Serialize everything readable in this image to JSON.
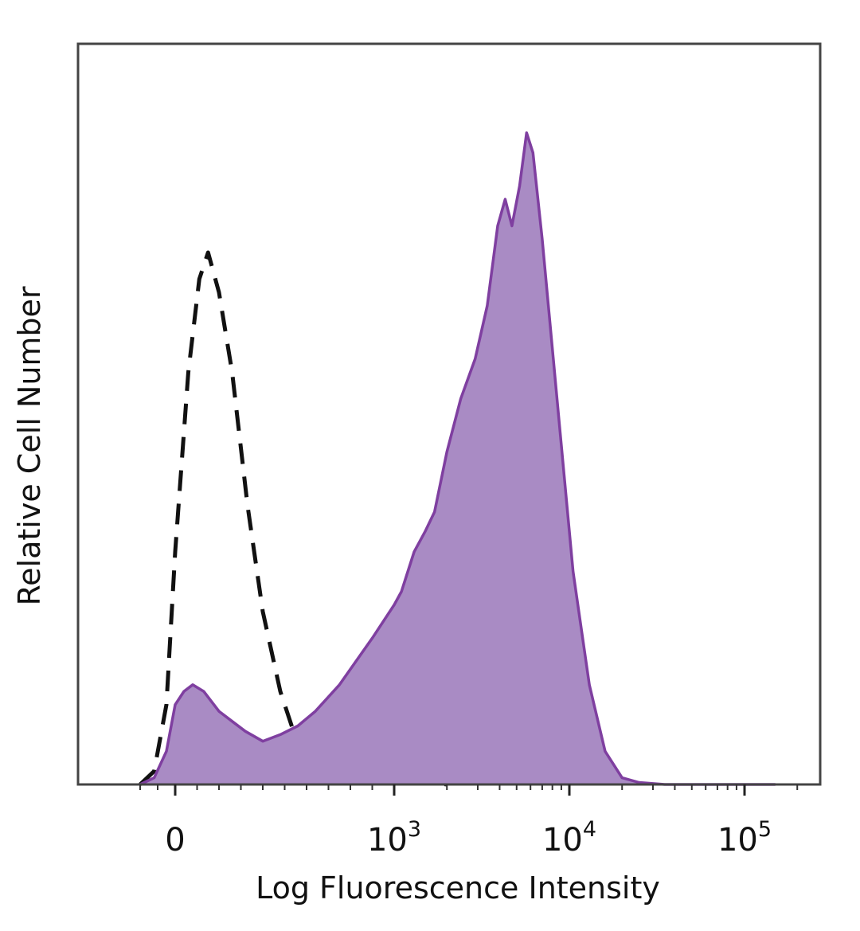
{
  "chart_data": {
    "type": "area",
    "xlabel": "Log Fluorescence Intensity",
    "ylabel": "Relative Cell Number",
    "x_scale": "biexponential (linear near 0, logarithmic above 10^3)",
    "x_ticks": [
      {
        "base": "0",
        "exp": ""
      },
      {
        "base": "10",
        "exp": "3"
      },
      {
        "base": "10",
        "exp": "4"
      },
      {
        "base": "10",
        "exp": "5"
      }
    ],
    "y_ticks_labeled": false,
    "grid": false,
    "legend": "none",
    "series": [
      {
        "style": "dashed-outline",
        "color": "#111111",
        "points": [
          [
            -200,
            0
          ],
          [
            -120,
            2
          ],
          [
            -50,
            12
          ],
          [
            0,
            35
          ],
          [
            60,
            62
          ],
          [
            110,
            76
          ],
          [
            150,
            80
          ],
          [
            200,
            74
          ],
          [
            260,
            62
          ],
          [
            330,
            42
          ],
          [
            400,
            26
          ],
          [
            480,
            14
          ],
          [
            560,
            6
          ],
          [
            620,
            3
          ],
          [
            700,
            1.5
          ],
          [
            800,
            0.8
          ],
          [
            1000,
            0.5
          ],
          [
            1200,
            0.3
          ],
          [
            1400,
            0.5
          ],
          [
            1700,
            0.2
          ],
          [
            2000,
            0
          ]
        ]
      },
      {
        "style": "filled",
        "color": "#7f3fa0",
        "fill": "#a98bc4",
        "points": [
          [
            -200,
            0
          ],
          [
            -120,
            1
          ],
          [
            -50,
            5
          ],
          [
            0,
            12
          ],
          [
            40,
            14
          ],
          [
            80,
            15
          ],
          [
            130,
            14
          ],
          [
            200,
            11
          ],
          [
            260,
            9.5
          ],
          [
            320,
            8
          ],
          [
            400,
            6.5
          ],
          [
            480,
            7.5
          ],
          [
            560,
            8.8
          ],
          [
            640,
            11
          ],
          [
            750,
            15
          ],
          [
            900,
            22
          ],
          [
            1000,
            27
          ],
          [
            1100,
            29
          ],
          [
            1300,
            35
          ],
          [
            1500,
            38
          ],
          [
            1700,
            41
          ],
          [
            2000,
            50
          ],
          [
            2400,
            58
          ],
          [
            2900,
            64
          ],
          [
            3400,
            72
          ],
          [
            3900,
            84
          ],
          [
            4300,
            88
          ],
          [
            4700,
            84
          ],
          [
            5200,
            90
          ],
          [
            5700,
            98
          ],
          [
            6200,
            95
          ],
          [
            7000,
            82
          ],
          [
            8500,
            58
          ],
          [
            10500,
            32
          ],
          [
            13000,
            15
          ],
          [
            16000,
            5
          ],
          [
            20000,
            1
          ],
          [
            25000,
            0.3
          ],
          [
            35000,
            0
          ],
          [
            70000,
            0
          ],
          [
            150000,
            0
          ]
        ]
      }
    ],
    "xlim": [
      -300,
      200000
    ],
    "ylim": [
      0,
      100
    ]
  }
}
